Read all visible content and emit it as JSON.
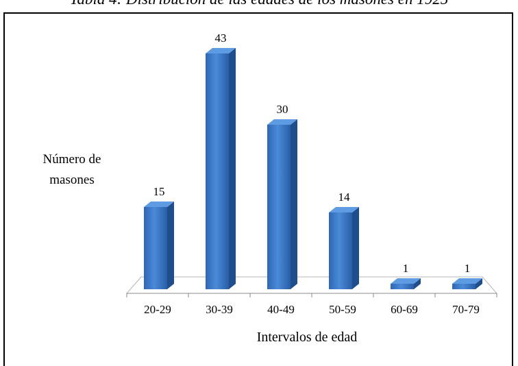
{
  "title_fragment": "Tabla 4: Distribución de las edades de los masones en 1925",
  "chart_data": {
    "type": "bar",
    "categories": [
      "20-29",
      "30-39",
      "40-49",
      "50-59",
      "60-69",
      "70-79"
    ],
    "values": [
      15,
      43,
      30,
      14,
      1,
      1
    ],
    "data_labels": [
      "15",
      "43",
      "30",
      "14",
      "1",
      "1"
    ],
    "title": "",
    "xlabel": "Intervalos de edad",
    "ylabel_lines": [
      "Número de",
      "masones"
    ],
    "ylim": [
      0,
      43
    ],
    "grid": false,
    "legend": "none",
    "style": "3d-column",
    "bar_color": "#3a78c8"
  }
}
